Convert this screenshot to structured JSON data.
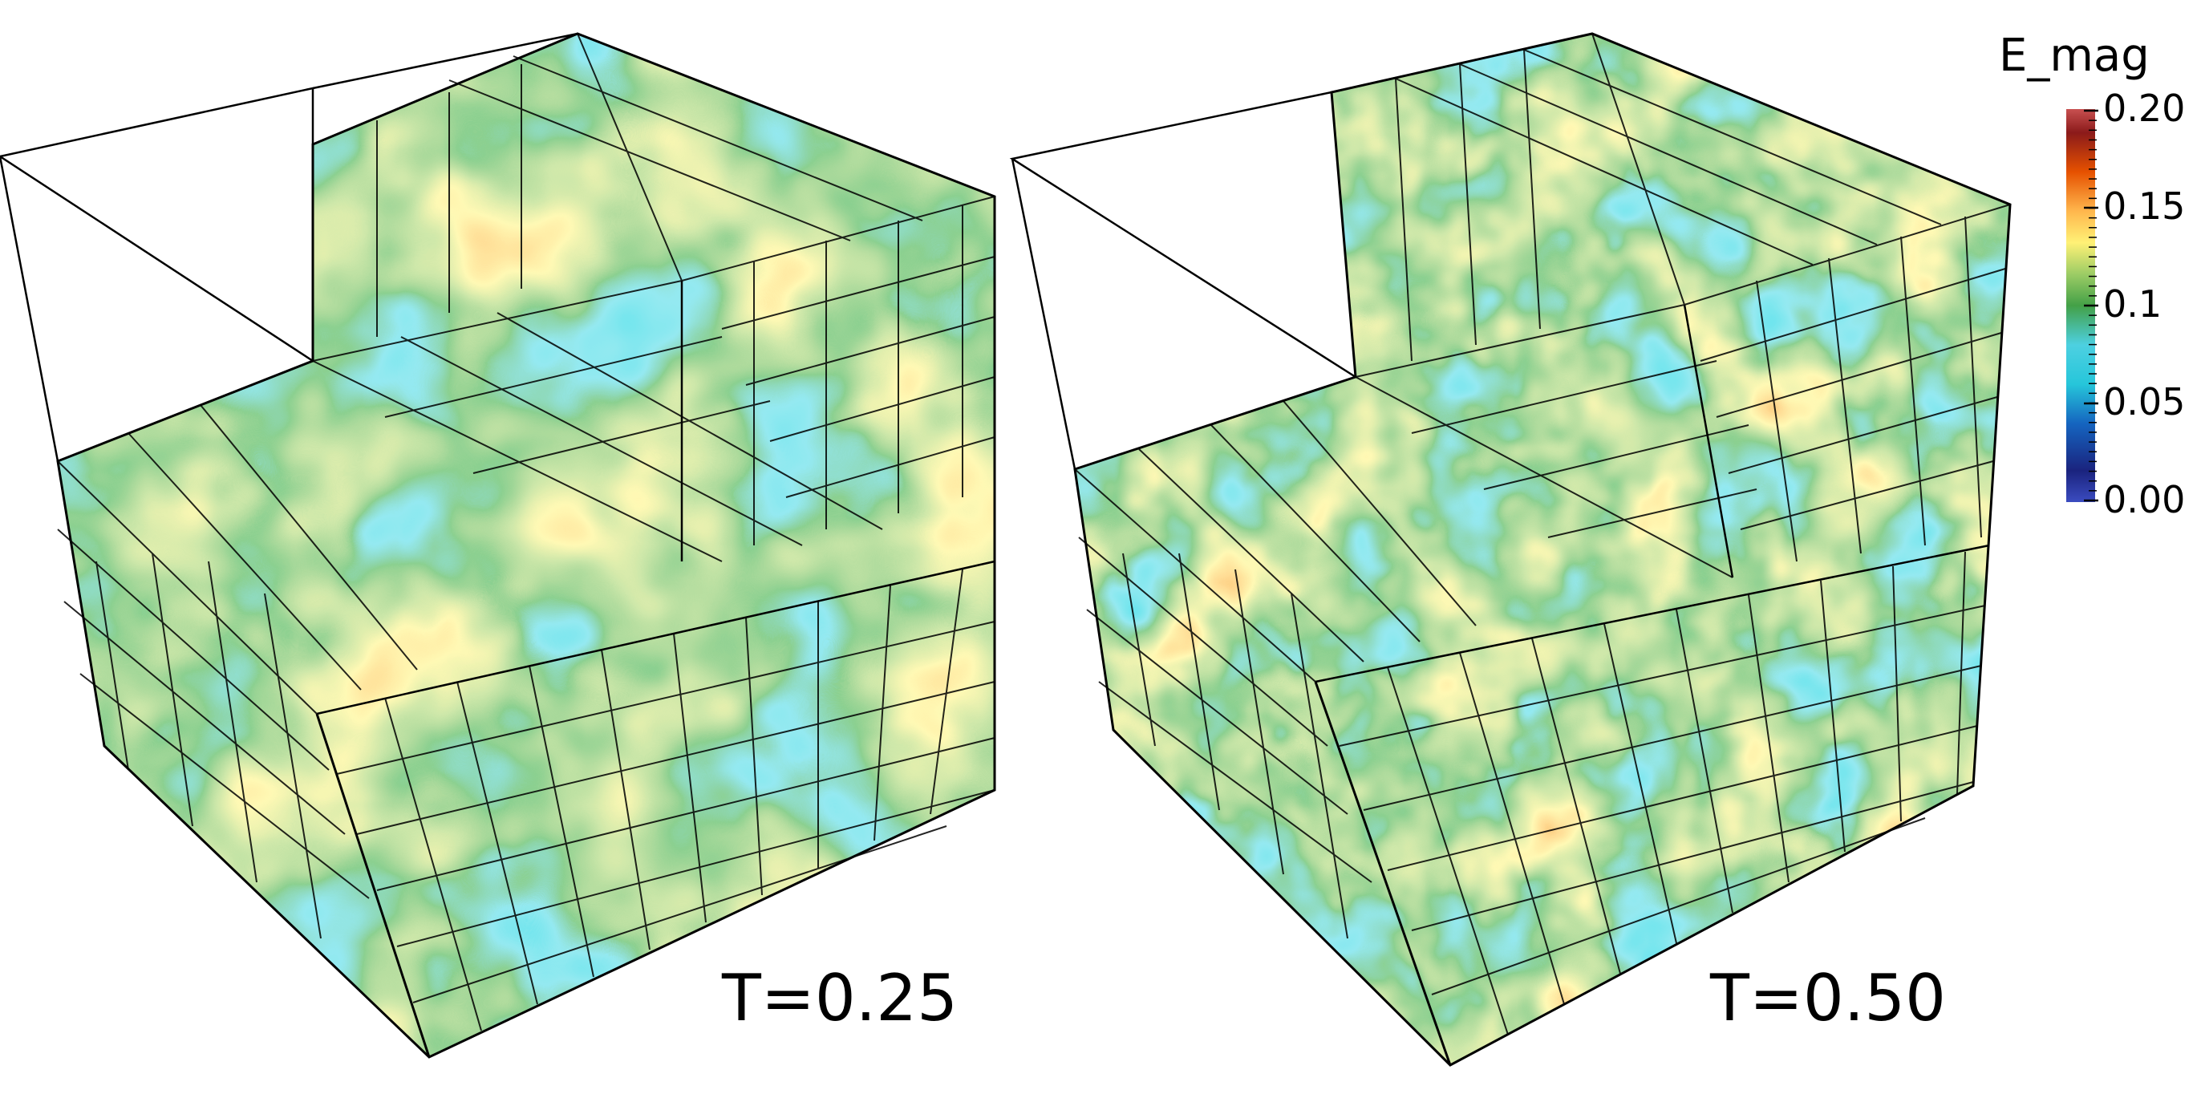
{
  "panels": [
    {
      "time_label": "T=0.25"
    },
    {
      "time_label": "T=0.50"
    }
  ],
  "colorbar": {
    "title": "E_mag",
    "ticks": [
      "0.20",
      "0.15",
      "0.1",
      "0.05",
      "0.00"
    ],
    "min": 0.0,
    "max": 0.2,
    "colormap": [
      "#3b4cc0",
      "#1a237e",
      "#1565c0",
      "#26c6da",
      "#4dd0e1",
      "#43a047",
      "#9ccc65",
      "#fff176",
      "#ffb74d",
      "#e65100",
      "#8b1a1a",
      "#c85050"
    ]
  },
  "colors": {
    "background": "#ffffff",
    "outline": "#000000",
    "grid": "#000000"
  }
}
